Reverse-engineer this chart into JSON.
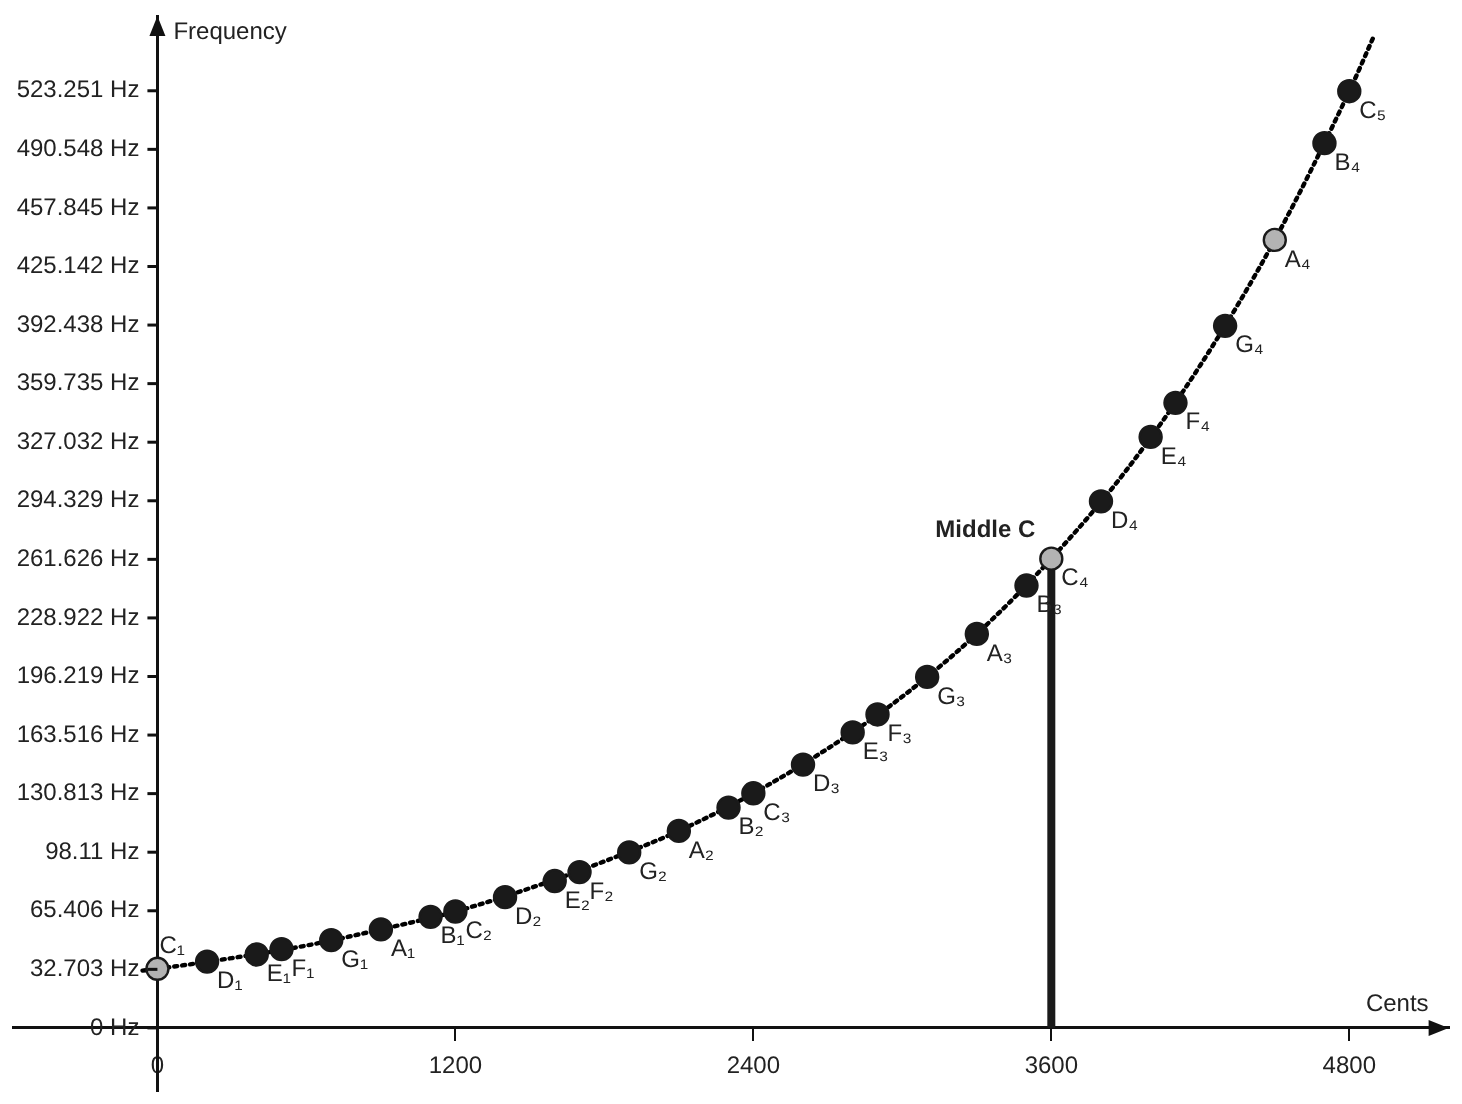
{
  "chart_data": {
    "type": "scatter",
    "xlabel": "Cents",
    "ylabel": "Frequency",
    "legend": false,
    "grid": false,
    "xlim": [
      -580,
      5200
    ],
    "ylim": [
      -35,
      565
    ],
    "xticks": [
      0,
      1200,
      2400,
      3600,
      4800
    ],
    "yticks": [
      {
        "value": 0,
        "label": "0 Hz"
      },
      {
        "value": 32.703,
        "label": "32.703 Hz"
      },
      {
        "value": 65.406,
        "label": "65.406 Hz"
      },
      {
        "value": 98.11,
        "label": "98.11 Hz"
      },
      {
        "value": 130.813,
        "label": "130.813 Hz"
      },
      {
        "value": 163.516,
        "label": "163.516 Hz"
      },
      {
        "value": 196.219,
        "label": "196.219 Hz"
      },
      {
        "value": 228.922,
        "label": "228.922 Hz"
      },
      {
        "value": 261.626,
        "label": "261.626 Hz"
      },
      {
        "value": 294.329,
        "label": "294.329 Hz"
      },
      {
        "value": 327.032,
        "label": "327.032 Hz"
      },
      {
        "value": 359.735,
        "label": "359.735 Hz"
      },
      {
        "value": 392.438,
        "label": "392.438 Hz"
      },
      {
        "value": 425.142,
        "label": "425.142 Hz"
      },
      {
        "value": 457.845,
        "label": "457.845 Hz"
      },
      {
        "value": 490.548,
        "label": "490.548 Hz"
      },
      {
        "value": 523.251,
        "label": "523.251 Hz"
      }
    ],
    "series": [
      {
        "type": "line",
        "line_style": "dotted",
        "marker": "none",
        "color": "#000000",
        "x": [
          -60,
          0,
          300,
          600,
          900,
          1200,
          1500,
          1800,
          2100,
          2400,
          2700,
          3000,
          3300,
          3600,
          3900,
          4200,
          4500,
          4800,
          4900
        ],
        "values": [
          32,
          33,
          39,
          46,
          55,
          65,
          78,
          93,
          110,
          131,
          156,
          185,
          220,
          262,
          311,
          370,
          440,
          523,
          554
        ]
      },
      {
        "type": "line",
        "line_style": "solid",
        "marker": "none",
        "color": "#1a1a1a",
        "x": [
          3600,
          3600
        ],
        "values": [
          0,
          262
        ]
      },
      {
        "marker": "circle",
        "color": "#1a1a1a",
        "x": [
          0,
          200,
          400,
          500,
          700,
          900,
          1100,
          1200,
          1400,
          1600,
          1700,
          1900,
          2100,
          2300,
          2400,
          2600,
          2800,
          2900,
          3100,
          3300,
          3500,
          3600,
          3800,
          4000,
          4100,
          4300,
          4500,
          4700,
          4800
        ],
        "values": [
          33,
          37,
          41,
          44,
          49,
          55,
          62,
          65,
          73,
          82,
          87,
          98,
          110,
          123,
          131,
          147,
          165,
          175,
          196,
          220,
          247,
          262,
          294,
          330,
          349,
          392,
          440,
          494,
          523
        ],
        "colors": [
          "#b3b3b3",
          "#1a1a1a",
          "#1a1a1a",
          "#1a1a1a",
          "#1a1a1a",
          "#1a1a1a",
          "#1a1a1a",
          "#1a1a1a",
          "#1a1a1a",
          "#1a1a1a",
          "#1a1a1a",
          "#1a1a1a",
          "#1a1a1a",
          "#1a1a1a",
          "#1a1a1a",
          "#1a1a1a",
          "#1a1a1a",
          "#1a1a1a",
          "#1a1a1a",
          "#1a1a1a",
          "#1a1a1a",
          "#b3b3b3",
          "#1a1a1a",
          "#1a1a1a",
          "#1a1a1a",
          "#1a1a1a",
          "#b3b3b3",
          "#1a1a1a",
          "#1a1a1a"
        ]
      }
    ],
    "annotations": [
      {
        "text": "C₁",
        "x": 0,
        "y": 33
      },
      {
        "text": "D₁",
        "x": 200,
        "y": 37
      },
      {
        "text": "E₁",
        "x": 400,
        "y": 41
      },
      {
        "text": "F₁",
        "x": 500,
        "y": 44
      },
      {
        "text": "G₁",
        "x": 700,
        "y": 49
      },
      {
        "text": "A₁",
        "x": 900,
        "y": 55
      },
      {
        "text": "B₁",
        "x": 1100,
        "y": 62
      },
      {
        "text": "C₂",
        "x": 1200,
        "y": 65
      },
      {
        "text": "D₂",
        "x": 1400,
        "y": 73
      },
      {
        "text": "E₂",
        "x": 1600,
        "y": 82
      },
      {
        "text": "F₂",
        "x": 1700,
        "y": 87
      },
      {
        "text": "G₂",
        "x": 1900,
        "y": 98
      },
      {
        "text": "A₂",
        "x": 2100,
        "y": 110
      },
      {
        "text": "B₂",
        "x": 2300,
        "y": 123
      },
      {
        "text": "C₃",
        "x": 2400,
        "y": 131
      },
      {
        "text": "D₃",
        "x": 2600,
        "y": 147
      },
      {
        "text": "E₃",
        "x": 2800,
        "y": 165
      },
      {
        "text": "F₃",
        "x": 2900,
        "y": 175
      },
      {
        "text": "G₃",
        "x": 3100,
        "y": 196
      },
      {
        "text": "A₃",
        "x": 3300,
        "y": 220
      },
      {
        "text": "B₃",
        "x": 3500,
        "y": 247
      },
      {
        "text": "C₄",
        "x": 3600,
        "y": 262
      },
      {
        "text": "D₄",
        "x": 3800,
        "y": 294
      },
      {
        "text": "E₄",
        "x": 4000,
        "y": 330
      },
      {
        "text": "F₄",
        "x": 4100,
        "y": 349
      },
      {
        "text": "G₄",
        "x": 4300,
        "y": 392
      },
      {
        "text": "A₄",
        "x": 4500,
        "y": 440
      },
      {
        "text": "B₄",
        "x": 4700,
        "y": 494
      },
      {
        "text": "C₅",
        "x": 4800,
        "y": 523
      },
      {
        "text": "Middle C",
        "x": 3600,
        "y": 262
      }
    ]
  }
}
